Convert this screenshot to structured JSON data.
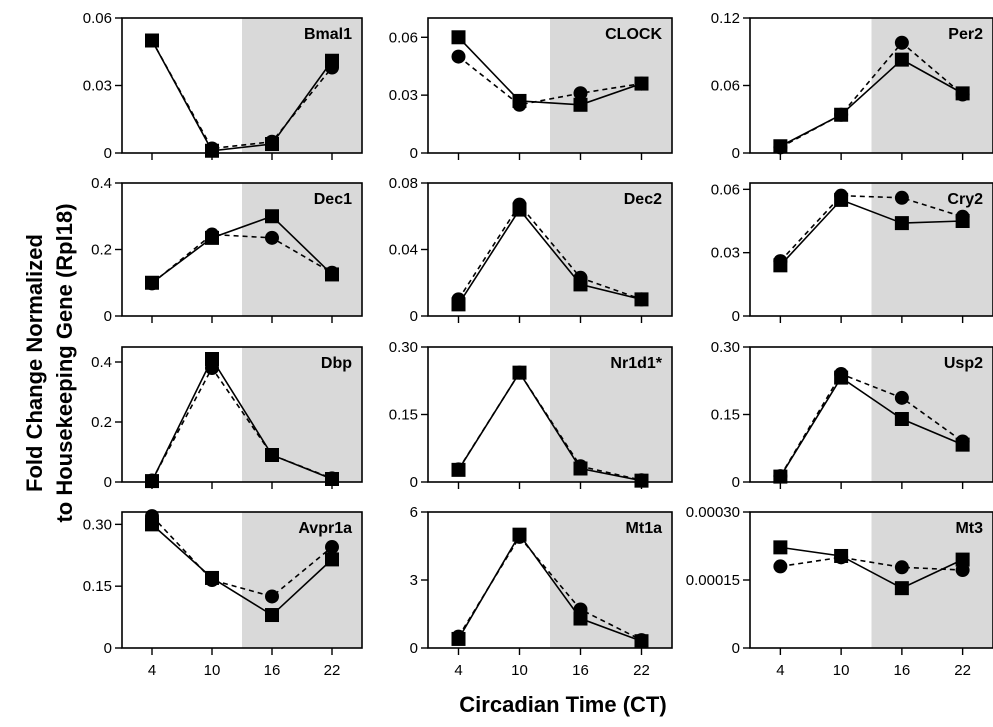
{
  "figure": {
    "ylabel_line1": "Fold Change Normalized",
    "ylabel_line2": "to Housekeeping Gene (Rpl18)",
    "xlabel": "Circadian Time (CT)"
  },
  "chart_data": [
    {
      "type": "line",
      "title": "Bmal1",
      "x": [
        4,
        10,
        16,
        22
      ],
      "ylim": [
        0,
        0.06
      ],
      "yticks": [
        "0",
        "0.03",
        "0.06"
      ],
      "xticks": [],
      "shade_from_ct": 13,
      "series": [
        {
          "style": "solid-square",
          "values": [
            0.05,
            0.001,
            0.004,
            0.041
          ]
        },
        {
          "style": "dashed-circle",
          "values": [
            0.05,
            0.002,
            0.005,
            0.038
          ]
        }
      ]
    },
    {
      "type": "line",
      "title": "CLOCK",
      "x": [
        4,
        10,
        16,
        22
      ],
      "ylim": [
        0,
        0.07
      ],
      "yticks": [
        "0",
        "0.03",
        "0.06"
      ],
      "ytick_values": [
        0,
        0.03,
        0.06
      ],
      "xticks": [],
      "shade_from_ct": 13,
      "series": [
        {
          "style": "solid-square",
          "values": [
            0.06,
            0.027,
            0.025,
            0.036
          ]
        },
        {
          "style": "dashed-circle",
          "values": [
            0.05,
            0.025,
            0.031,
            0.036
          ]
        }
      ]
    },
    {
      "type": "line",
      "title": "Per2",
      "x": [
        4,
        10,
        16,
        22
      ],
      "ylim": [
        0,
        0.12
      ],
      "yticks": [
        "0",
        "0.06",
        "0.12"
      ],
      "xticks": [],
      "shade_from_ct": 13,
      "series": [
        {
          "style": "solid-square",
          "values": [
            0.006,
            0.034,
            0.083,
            0.053
          ]
        },
        {
          "style": "dashed-circle",
          "values": [
            0.005,
            0.034,
            0.098,
            0.052
          ]
        }
      ]
    },
    {
      "type": "line",
      "title": "Dec1",
      "x": [
        4,
        10,
        16,
        22
      ],
      "ylim": [
        0,
        0.4
      ],
      "yticks": [
        "0",
        "0.2",
        "0.4"
      ],
      "xticks": [],
      "shade_from_ct": 13,
      "series": [
        {
          "style": "solid-square",
          "values": [
            0.1,
            0.235,
            0.3,
            0.125
          ]
        },
        {
          "style": "dashed-circle",
          "values": [
            0.098,
            0.245,
            0.235,
            0.13
          ]
        }
      ]
    },
    {
      "type": "line",
      "title": "Dec2",
      "x": [
        4,
        10,
        16,
        22
      ],
      "ylim": [
        0,
        0.08
      ],
      "yticks": [
        "0",
        "0.04",
        "0.08"
      ],
      "xticks": [],
      "shade_from_ct": 13,
      "series": [
        {
          "style": "solid-square",
          "values": [
            0.007,
            0.064,
            0.019,
            0.01
          ]
        },
        {
          "style": "dashed-circle",
          "values": [
            0.01,
            0.067,
            0.023,
            0.01
          ]
        }
      ]
    },
    {
      "type": "line",
      "title": "Cry2",
      "x": [
        4,
        10,
        16,
        22
      ],
      "ylim": [
        0,
        0.063
      ],
      "yticks": [
        "0",
        "0.03",
        "0.06"
      ],
      "ytick_values": [
        0,
        0.03,
        0.06
      ],
      "xticks": [],
      "shade_from_ct": 13,
      "series": [
        {
          "style": "solid-square",
          "values": [
            0.024,
            0.055,
            0.044,
            0.045
          ]
        },
        {
          "style": "dashed-circle",
          "values": [
            0.026,
            0.057,
            0.056,
            0.047
          ]
        }
      ]
    },
    {
      "type": "line",
      "title": "Dbp",
      "x": [
        4,
        10,
        16,
        22
      ],
      "ylim": [
        0,
        0.45
      ],
      "yticks": [
        "0",
        "0.2",
        "0.4"
      ],
      "ytick_values": [
        0,
        0.2,
        0.4
      ],
      "xticks": [],
      "shade_from_ct": 13,
      "series": [
        {
          "style": "solid-square",
          "values": [
            0.003,
            0.41,
            0.09,
            0.01
          ]
        },
        {
          "style": "dashed-circle",
          "values": [
            0.005,
            0.38,
            0.09,
            0.012
          ]
        }
      ]
    },
    {
      "type": "line",
      "title": "Nr1d1*",
      "x": [
        4,
        10,
        16,
        22
      ],
      "ylim": [
        0,
        0.3
      ],
      "yticks": [
        "0",
        "0.15",
        "0.30"
      ],
      "xticks": [],
      "shade_from_ct": 13,
      "series": [
        {
          "style": "solid-square",
          "values": [
            0.027,
            0.243,
            0.03,
            0.003
          ]
        },
        {
          "style": "dashed-circle",
          "values": [
            0.028,
            0.243,
            0.035,
            0.004
          ]
        }
      ]
    },
    {
      "type": "line",
      "title": "Usp2",
      "x": [
        4,
        10,
        16,
        22
      ],
      "ylim": [
        0,
        0.3
      ],
      "yticks": [
        "0",
        "0.15",
        "0.30"
      ],
      "xticks": [],
      "shade_from_ct": 13,
      "series": [
        {
          "style": "solid-square",
          "values": [
            0.012,
            0.232,
            0.14,
            0.083
          ]
        },
        {
          "style": "dashed-circle",
          "values": [
            0.013,
            0.24,
            0.187,
            0.09
          ]
        }
      ]
    },
    {
      "type": "line",
      "title": "Avpr1a",
      "x": [
        4,
        10,
        16,
        22
      ],
      "ylim": [
        0,
        0.33
      ],
      "yticks": [
        "0",
        "0.15",
        "0.30"
      ],
      "ytick_values": [
        0,
        0.15,
        0.3
      ],
      "xticks": [
        "4",
        "10",
        "16",
        "22"
      ],
      "shade_from_ct": 13,
      "series": [
        {
          "style": "solid-square",
          "values": [
            0.3,
            0.17,
            0.08,
            0.215
          ]
        },
        {
          "style": "dashed-circle",
          "values": [
            0.32,
            0.165,
            0.125,
            0.245
          ]
        }
      ]
    },
    {
      "type": "line",
      "title": "Mt1a",
      "x": [
        4,
        10,
        16,
        22
      ],
      "ylim": [
        0,
        6
      ],
      "yticks": [
        "0",
        "3",
        "6"
      ],
      "xticks": [
        "4",
        "10",
        "16",
        "22"
      ],
      "shade_from_ct": 13,
      "series": [
        {
          "style": "solid-square",
          "values": [
            0.4,
            5.0,
            1.3,
            0.3
          ]
        },
        {
          "style": "dashed-circle",
          "values": [
            0.5,
            4.9,
            1.7,
            0.35
          ]
        }
      ]
    },
    {
      "type": "line",
      "title": "Mt3",
      "x": [
        4,
        10,
        16,
        22
      ],
      "ylim": [
        0,
        0.0003
      ],
      "yticks": [
        "0",
        "0.00015",
        "0.00030"
      ],
      "xticks": [
        "4",
        "10",
        "16",
        "22"
      ],
      "shade_from_ct": 13,
      "series": [
        {
          "style": "solid-square",
          "values": [
            0.000222,
            0.000203,
            0.000132,
            0.000195
          ]
        },
        {
          "style": "dashed-circle",
          "values": [
            0.00018,
            0.0002,
            0.000178,
            0.000172
          ]
        }
      ]
    }
  ]
}
